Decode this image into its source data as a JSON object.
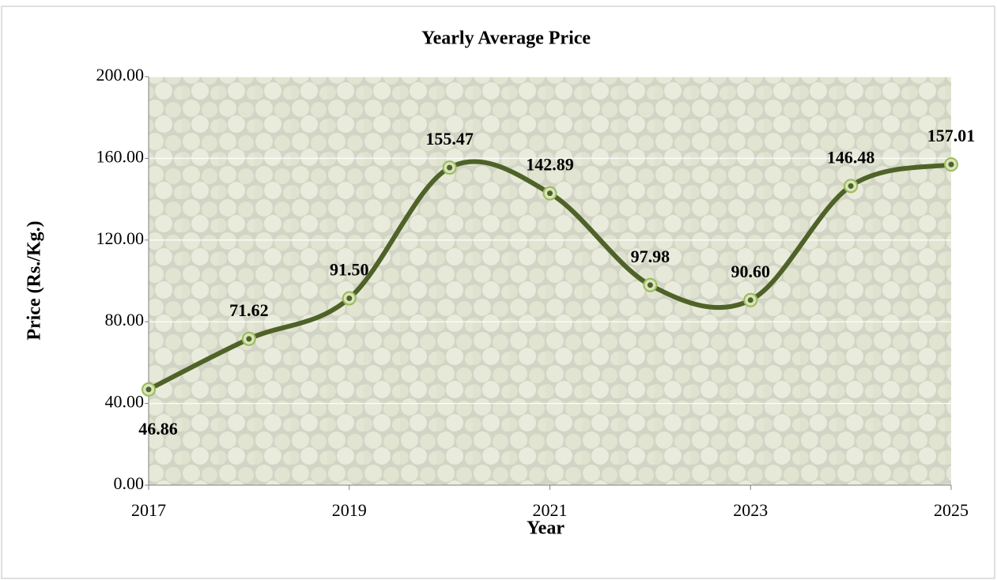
{
  "chart_data": {
    "type": "line",
    "title": "Yearly Average Price",
    "x_label": "Year",
    "y_label": "Price (Rs./Kg.)",
    "x": [
      2017,
      2018,
      2019,
      2020,
      2021,
      2022,
      2023,
      2024,
      2025
    ],
    "series": [
      {
        "name": "Yearly Average Price",
        "color": "#4f6228",
        "values": [
          46.86,
          71.62,
          91.5,
          155.47,
          142.89,
          97.98,
          90.6,
          146.48,
          157.01
        ],
        "value_labels": [
          "46.86",
          "71.62",
          "91.50",
          "155.47",
          "142.89",
          "97.98",
          "90.60",
          "146.48",
          "157.01"
        ]
      }
    ],
    "xlim": [
      2017,
      2025
    ],
    "xticks": [
      2017,
      2019,
      2021,
      2023,
      2025
    ],
    "ylim": [
      0,
      200
    ],
    "yticks": [
      {
        "value": 0,
        "label": "0.00"
      },
      {
        "value": 40,
        "label": "40.00"
      },
      {
        "value": 80,
        "label": "80.00"
      },
      {
        "value": 120,
        "label": "120.00"
      },
      {
        "value": 160,
        "label": "160.00"
      },
      {
        "value": 200,
        "label": "200.00"
      }
    ],
    "grid": true,
    "smooth": true
  }
}
